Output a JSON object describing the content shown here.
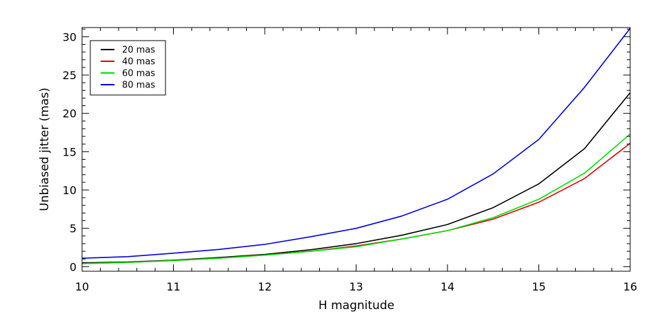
{
  "chart_data": {
    "type": "line",
    "title": "",
    "xlabel": "H magnitude",
    "ylabel": "Unbiased jitter (mas)",
    "xlim": [
      10,
      16
    ],
    "ylim": [
      -0.6,
      31.2
    ],
    "xticks": [
      10,
      11,
      12,
      13,
      14,
      15,
      16
    ],
    "yticks": [
      0,
      5,
      10,
      15,
      20,
      25,
      30
    ],
    "legend_position": "top-left",
    "x": [
      10,
      10.5,
      11,
      11.5,
      12,
      12.5,
      13,
      13.5,
      14,
      14.5,
      15,
      15.5,
      16
    ],
    "series": [
      {
        "name": "20 mas",
        "color": "#000000",
        "values": [
          0.5,
          0.6,
          0.85,
          1.2,
          1.6,
          2.2,
          3.0,
          4.1,
          5.5,
          7.7,
          10.8,
          15.4,
          22.7
        ]
      },
      {
        "name": "40 mas",
        "color": "#e00000",
        "values": [
          0.4,
          0.55,
          0.8,
          1.1,
          1.5,
          2.0,
          2.7,
          3.6,
          4.7,
          6.2,
          8.4,
          11.5,
          16.1
        ]
      },
      {
        "name": "60 mas",
        "color": "#00e000",
        "values": [
          0.4,
          0.55,
          0.8,
          1.1,
          1.5,
          2.0,
          2.6,
          3.6,
          4.7,
          6.4,
          8.8,
          12.2,
          17.3
        ]
      },
      {
        "name": "80 mas",
        "color": "#0000e0",
        "values": [
          1.1,
          1.3,
          1.75,
          2.25,
          2.9,
          3.9,
          5.0,
          6.6,
          8.8,
          12.1,
          16.6,
          23.4,
          31.1
        ]
      }
    ]
  }
}
